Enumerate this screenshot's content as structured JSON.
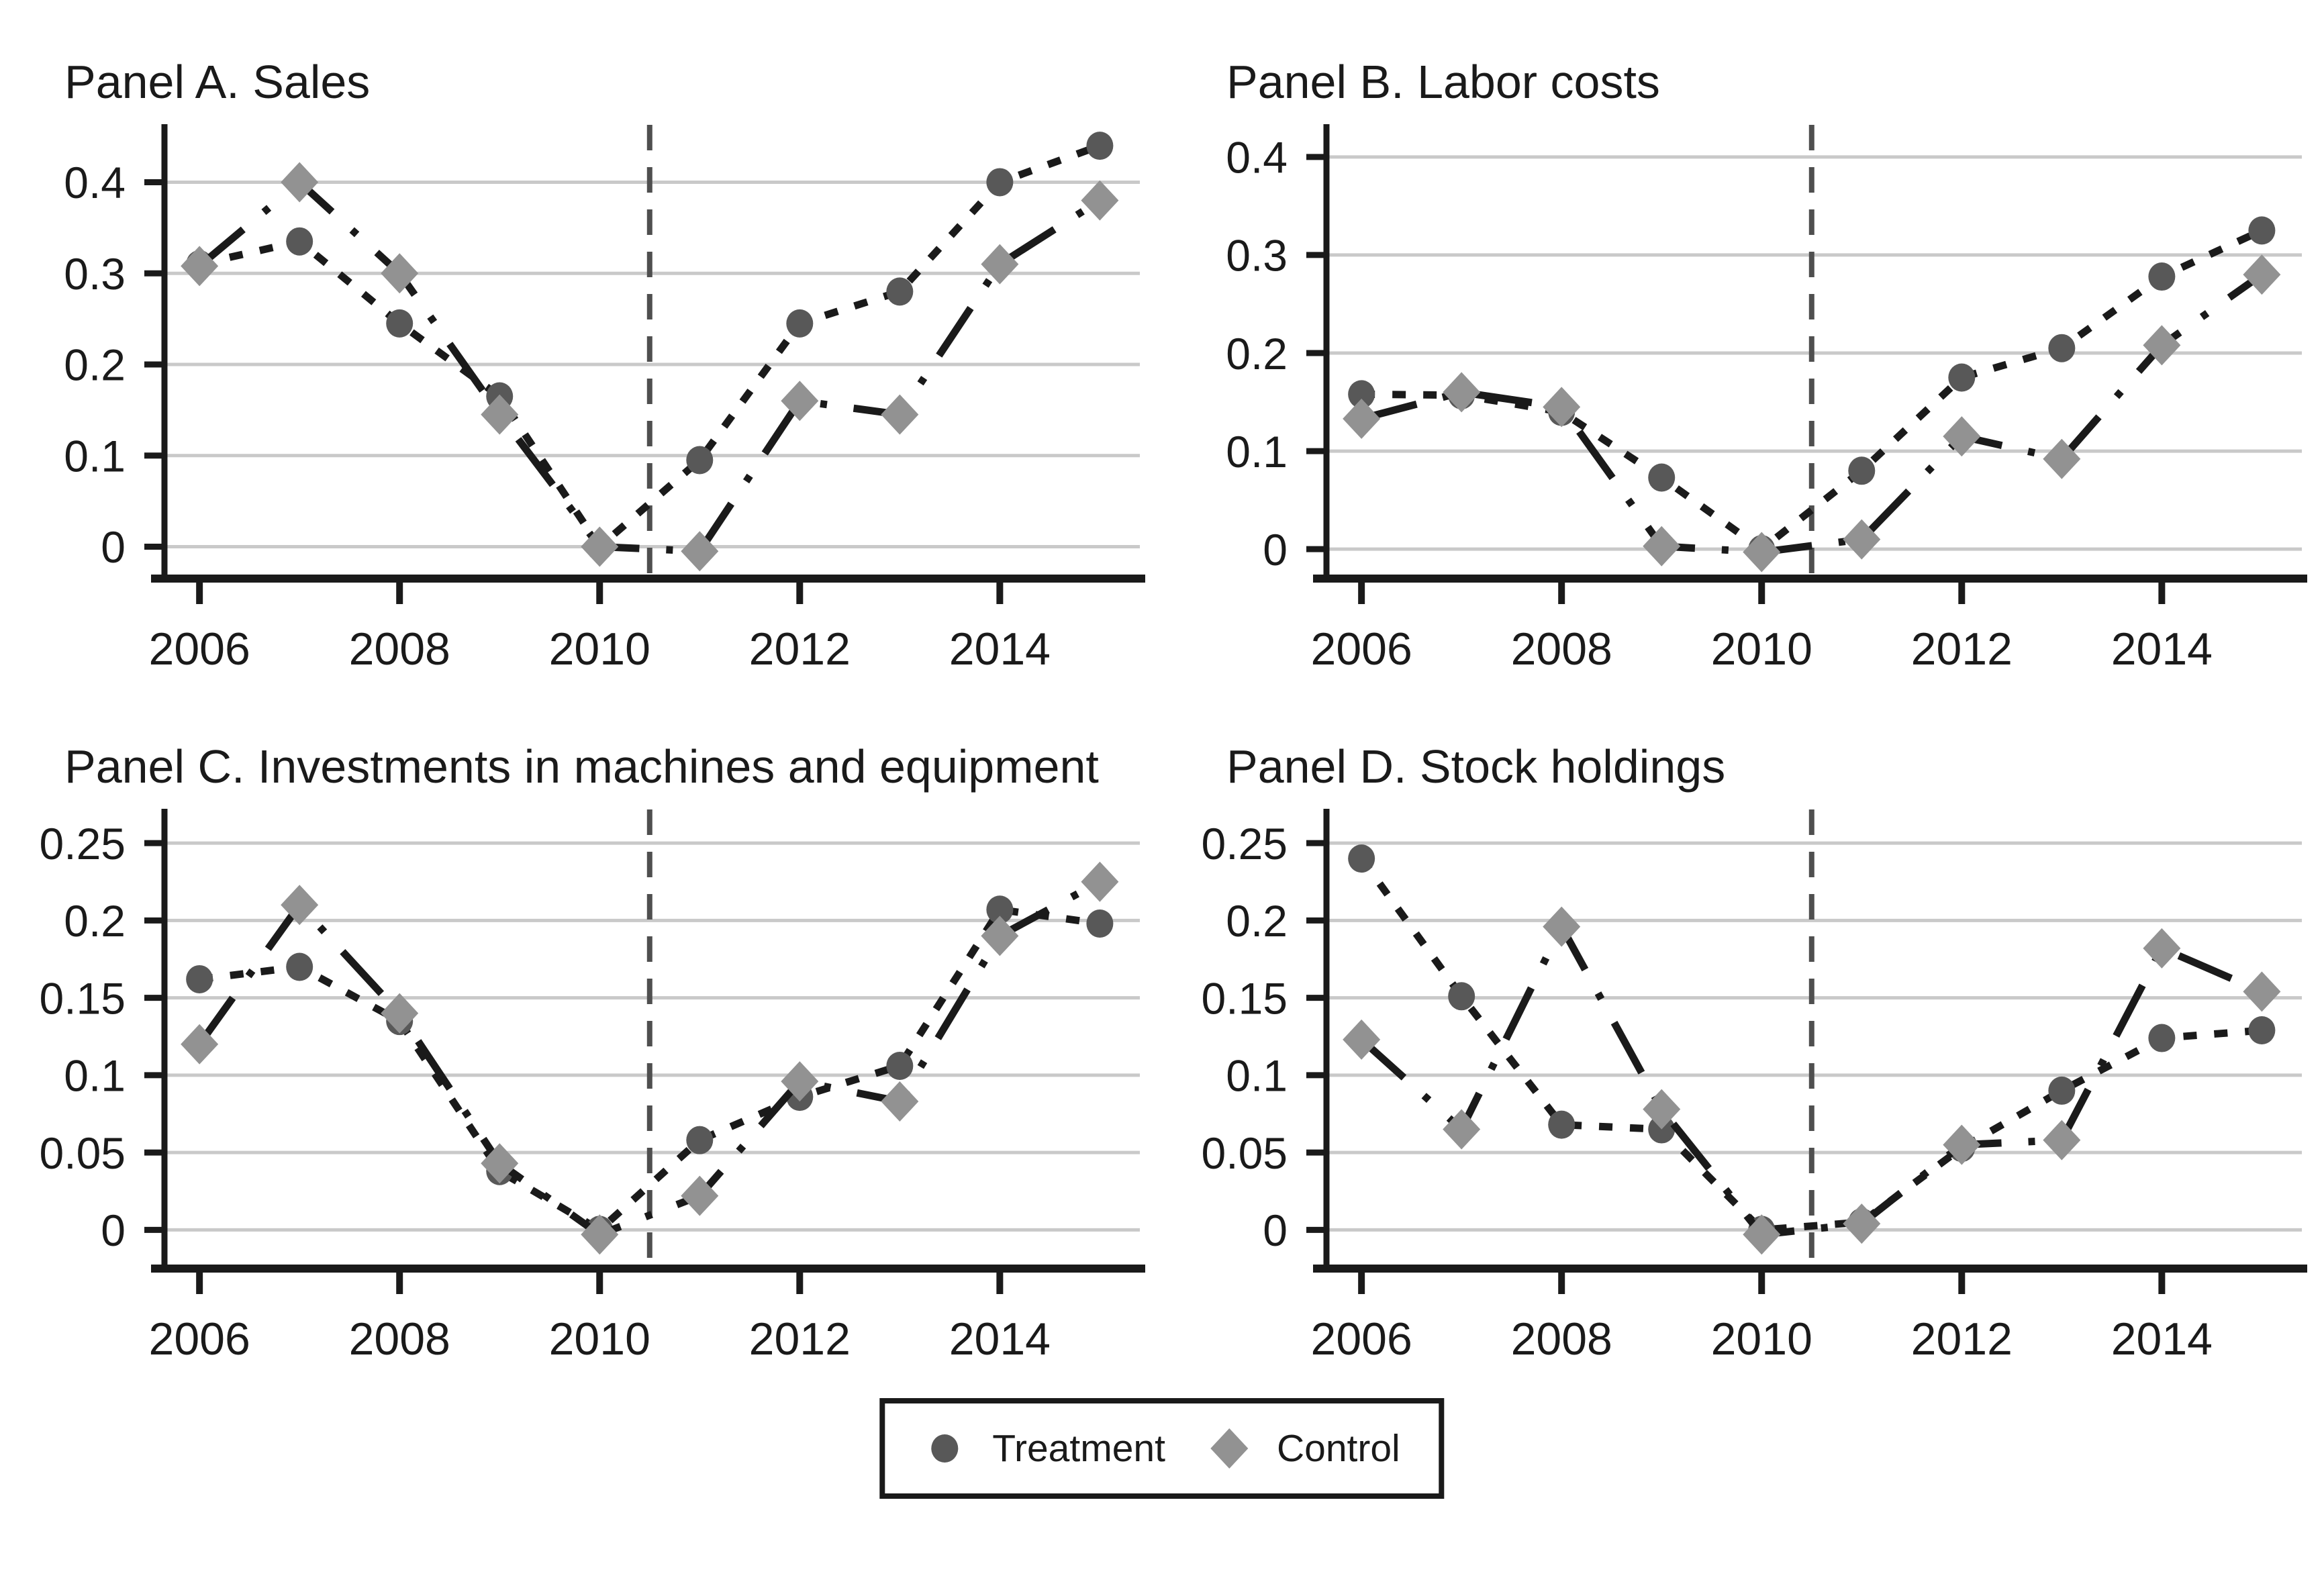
{
  "colors": {
    "treatment_marker": "#585858",
    "control_marker": "#929292",
    "line": "#1a1a1a",
    "gridline": "#c9c9c9",
    "event_line": "#4f4f4f",
    "axis": "#1a1a1a",
    "background": "#ffffff"
  },
  "legend": {
    "position": "bottom-center",
    "items": [
      {
        "label": "Treatment",
        "marker": "circle",
        "color": "#585858"
      },
      {
        "label": "Control",
        "marker": "diamond",
        "color": "#929292"
      }
    ]
  },
  "chart_data": [
    {
      "type": "line",
      "title": "Panel A. Sales",
      "x": [
        2006,
        2007,
        2008,
        2009,
        2010,
        2011,
        2012,
        2013,
        2014,
        2015
      ],
      "xticks": [
        2006,
        2008,
        2010,
        2012,
        2014
      ],
      "xlim": [
        2005.65,
        2015.4
      ],
      "yticks": [
        0,
        0.1,
        0.2,
        0.3,
        0.4
      ],
      "ytick_labels": [
        "0",
        "0.1",
        "0.2",
        "0.3",
        "0.4"
      ],
      "ylim": [
        -0.035,
        0.46
      ],
      "grid": true,
      "vline_x": 2010.5,
      "series": [
        {
          "name": "Treatment",
          "marker": "circle",
          "linestyle": "dotted",
          "values": [
            0.31,
            0.335,
            0.245,
            0.165,
            0.0,
            0.095,
            0.245,
            0.28,
            0.4,
            0.44
          ]
        },
        {
          "name": "Control",
          "marker": "diamond",
          "linestyle": "dashdot",
          "values": [
            0.308,
            0.4,
            0.3,
            0.145,
            0.0,
            -0.005,
            0.16,
            0.145,
            0.31,
            0.38
          ]
        }
      ]
    },
    {
      "type": "line",
      "title": "Panel B. Labor costs",
      "x": [
        2006,
        2007,
        2008,
        2009,
        2010,
        2011,
        2012,
        2013,
        2014,
        2015
      ],
      "xticks": [
        2006,
        2008,
        2010,
        2012,
        2014
      ],
      "xlim": [
        2005.65,
        2015.4
      ],
      "yticks": [
        0,
        0.1,
        0.2,
        0.3,
        0.4
      ],
      "ytick_labels": [
        "0",
        "0.1",
        "0.2",
        "0.3",
        "0.4"
      ],
      "ylim": [
        -0.03,
        0.43
      ],
      "grid": true,
      "vline_x": 2010.5,
      "series": [
        {
          "name": "Treatment",
          "marker": "circle",
          "linestyle": "dotted",
          "values": [
            0.158,
            0.157,
            0.14,
            0.073,
            0.0,
            0.08,
            0.175,
            0.205,
            0.278,
            0.325
          ]
        },
        {
          "name": "Control",
          "marker": "diamond",
          "linestyle": "dashdot",
          "values": [
            0.133,
            0.16,
            0.145,
            0.003,
            -0.003,
            0.01,
            0.115,
            0.092,
            0.208,
            0.28
          ]
        }
      ]
    },
    {
      "type": "line",
      "title": "Panel C. Investments in machines and equipment",
      "x": [
        2006,
        2007,
        2008,
        2009,
        2010,
        2011,
        2012,
        2013,
        2014,
        2015
      ],
      "xticks": [
        2006,
        2008,
        2010,
        2012,
        2014
      ],
      "xlim": [
        2005.65,
        2015.4
      ],
      "yticks": [
        0,
        0.05,
        0.1,
        0.15,
        0.2,
        0.25
      ],
      "ytick_labels": [
        "0",
        "0.05",
        "0.1",
        "0.15",
        "0.2",
        "0.25"
      ],
      "ylim": [
        -0.025,
        0.27
      ],
      "grid": true,
      "vline_x": 2010.5,
      "series": [
        {
          "name": "Treatment",
          "marker": "circle",
          "linestyle": "dotted",
          "values": [
            0.162,
            0.17,
            0.135,
            0.038,
            0.0,
            0.058,
            0.086,
            0.106,
            0.207,
            0.198
          ]
        },
        {
          "name": "Control",
          "marker": "diamond",
          "linestyle": "dashdot",
          "values": [
            0.12,
            0.21,
            0.14,
            0.043,
            -0.003,
            0.022,
            0.096,
            0.083,
            0.19,
            0.225
          ]
        }
      ]
    },
    {
      "type": "line",
      "title": "Panel D. Stock holdings",
      "x": [
        2006,
        2007,
        2008,
        2009,
        2010,
        2011,
        2012,
        2013,
        2014,
        2015
      ],
      "xticks": [
        2006,
        2008,
        2010,
        2012,
        2014
      ],
      "xlim": [
        2005.65,
        2015.4
      ],
      "yticks": [
        0,
        0.05,
        0.1,
        0.15,
        0.2,
        0.25
      ],
      "ytick_labels": [
        "0",
        "0.05",
        "0.1",
        "0.15",
        "0.2",
        "0.25"
      ],
      "ylim": [
        -0.025,
        0.27
      ],
      "grid": true,
      "vline_x": 2010.5,
      "series": [
        {
          "name": "Treatment",
          "marker": "circle",
          "linestyle": "dotted",
          "values": [
            0.24,
            0.151,
            0.068,
            0.065,
            0.0,
            0.005,
            0.053,
            0.09,
            0.124,
            0.129
          ]
        },
        {
          "name": "Control",
          "marker": "diamond",
          "linestyle": "dashdot",
          "values": [
            0.123,
            0.065,
            0.196,
            0.078,
            -0.003,
            0.004,
            0.055,
            0.058,
            0.182,
            0.154
          ]
        }
      ]
    }
  ]
}
